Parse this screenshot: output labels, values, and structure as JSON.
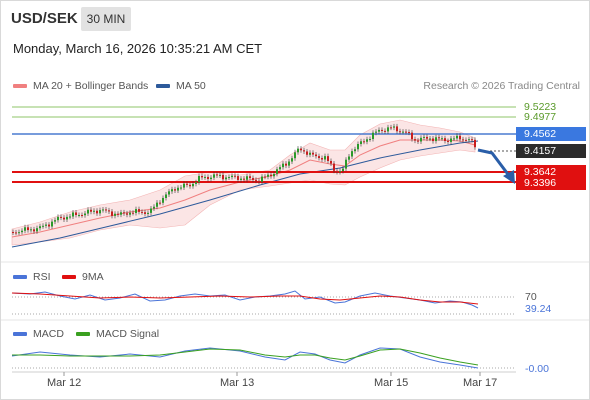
{
  "header": {
    "symbol": "USD/SEK",
    "timeframe": "30 MIN",
    "datetime": "Monday, March 16, 2026 10:35:21 AM CET"
  },
  "legend": {
    "bollinger_label": "MA 20 + Bollinger Bands",
    "ma50_label": "MA 50",
    "copyright": "Research © 2026 Trading Central"
  },
  "price_levels": {
    "r2": "9.5223",
    "r1": "9.4977",
    "pivot": "9.4562",
    "last": "9.4157",
    "s1": "9.3642",
    "s2": "9.3396"
  },
  "rsi": {
    "label": "RSI",
    "ma_label": "9MA",
    "level": "70",
    "value": "39.24"
  },
  "macd": {
    "label": "MACD",
    "signal_label": "MACD Signal",
    "value": "-0.00"
  },
  "x_axis": [
    "Mar 12",
    "Mar 13",
    "Mar 15",
    "Mar 17"
  ],
  "colors": {
    "green_level": "#8fc46a",
    "blue_level": "#4a7bd0",
    "red_level": "#e01010",
    "bollinger": "#f08080",
    "ma50": "#2d5a9b",
    "rsi": "#4a74d8",
    "rsi_ma": "#e01010",
    "macd": "#4a74d8",
    "macd_signal": "#3aa020",
    "arrow": "#2a5ea8"
  }
}
